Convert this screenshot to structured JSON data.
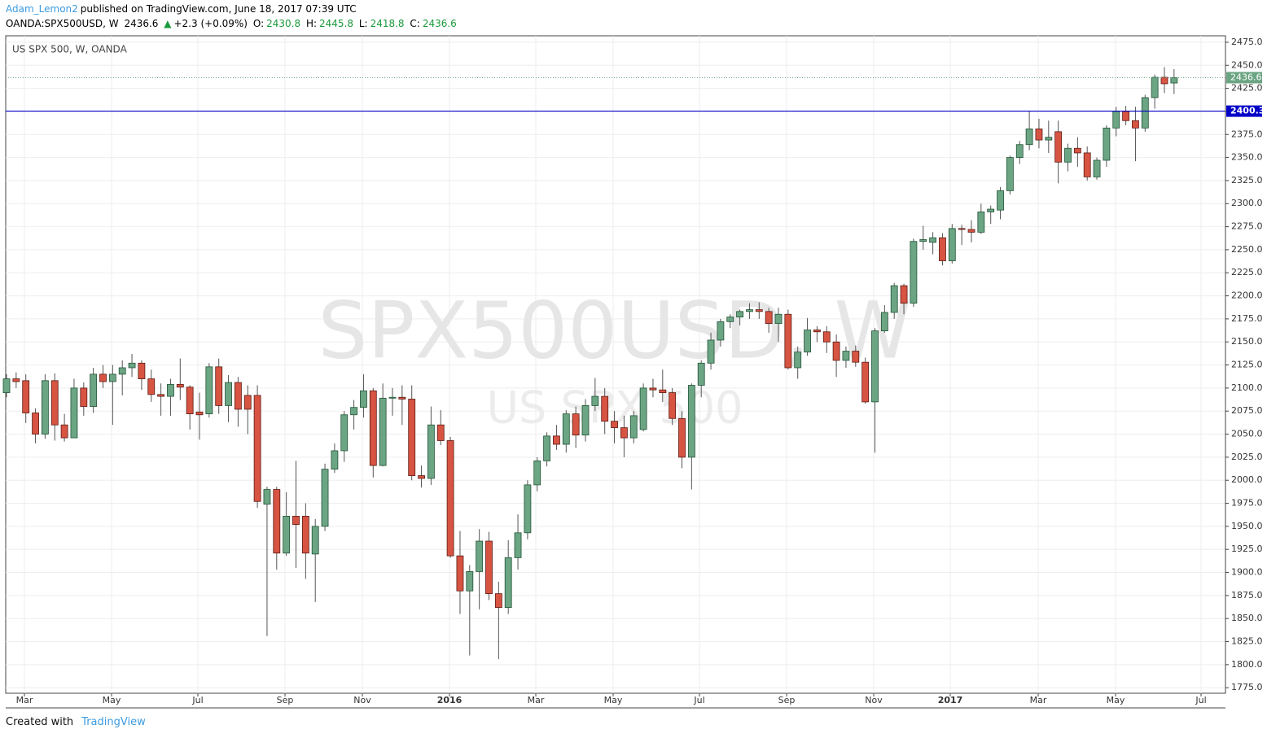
{
  "header": {
    "author": "Adam_Lemon2",
    "published": "published on TradingView.com, June 18, 2017 07:39 UTC",
    "symbol": "OANDA:SPX500USD, W",
    "last": "2436.6",
    "arrow": "▲",
    "change": "+2.3 (+0.09%)",
    "o_label": "O:",
    "o": "2430.8",
    "h_label": "H:",
    "h": "2445.8",
    "l_label": "L:",
    "l": "2418.8",
    "c_label": "C:",
    "c": "2436.6"
  },
  "footer": {
    "created": "Created with",
    "brand": "TradingView"
  },
  "chart_data": {
    "type": "candlestick",
    "title": "US SPX 500, W, OANDA",
    "watermark": "SPX500USD, W",
    "watermark_sub": "US SPX 500",
    "up_color": "#6ba583",
    "down_color": "#d75442",
    "grid": true,
    "last_price": 2436.6,
    "last_price_label": "2436.6",
    "hline": 2400.3,
    "hline_label": "2400.3",
    "hline_color": "#0000c8",
    "x_labels": [
      "Mar",
      "May",
      "Jul",
      "Sep",
      "Nov",
      "2016",
      "Mar",
      "May",
      "Jul",
      "Sep",
      "Nov",
      "2017",
      "Mar",
      "May",
      "Jul"
    ],
    "ylim": [
      1769,
      2482
    ],
    "yticks": [
      {
        "value": 1775,
        "label": "1775.0"
      },
      {
        "value": 1800,
        "label": "1800.0"
      },
      {
        "value": 1825,
        "label": "1825.0"
      },
      {
        "value": 1850,
        "label": "1850.0"
      },
      {
        "value": 1875,
        "label": "1875.0"
      },
      {
        "value": 1900,
        "label": "1900.0"
      },
      {
        "value": 1925,
        "label": "1925.0"
      },
      {
        "value": 1950,
        "label": "1950.0"
      },
      {
        "value": 1975,
        "label": "1975.0"
      },
      {
        "value": 2000,
        "label": "2000.0"
      },
      {
        "value": 2025,
        "label": "2025.0"
      },
      {
        "value": 2050,
        "label": "2050.0"
      },
      {
        "value": 2075,
        "label": "2075.0"
      },
      {
        "value": 2100,
        "label": "2100.0"
      },
      {
        "value": 2125,
        "label": "2125.0"
      },
      {
        "value": 2150,
        "label": "2150.0"
      },
      {
        "value": 2175,
        "label": "2175.0"
      },
      {
        "value": 2200,
        "label": "2200.0"
      },
      {
        "value": 2225,
        "label": "2225.0"
      },
      {
        "value": 2250,
        "label": "2250.0"
      },
      {
        "value": 2275,
        "label": "2275.0"
      },
      {
        "value": 2300,
        "label": "2300.0"
      },
      {
        "value": 2325,
        "label": "2325.0"
      },
      {
        "value": 2350,
        "label": "2350.0"
      },
      {
        "value": 2375,
        "label": "2375.0"
      },
      {
        "value": 2400,
        "label": "2400.0"
      },
      {
        "value": 2425,
        "label": "2425.0"
      },
      {
        "value": 2450,
        "label": "2450.0"
      },
      {
        "value": 2475,
        "label": "2475.0"
      }
    ],
    "open": [
      2095,
      2110,
      2108,
      2073,
      2050,
      2108,
      2060,
      2046,
      2100,
      2080,
      2115,
      2107,
      2115,
      2122,
      2127,
      2110,
      2093,
      2091,
      2104,
      2101,
      2074,
      2072,
      2123,
      2081,
      2106,
      2092,
      2092,
      1974,
      1990,
      1921,
      1961,
      1961,
      1920,
      1950,
      2012,
      2032,
      2071,
      2079,
      2097,
      2016,
      2089,
      2090,
      2088,
      2005,
      2002,
      2060,
      2043,
      1918,
      1880,
      1901,
      1934,
      1877,
      1862,
      1916,
      1943,
      1995,
      2021,
      2048,
      2039,
      2072,
      2049,
      2081,
      2091,
      2064,
      2057,
      2046,
      2055,
      2100,
      2098,
      2095,
      2067,
      2025,
      2103,
      2127,
      2152,
      2172,
      2177,
      2183,
      2185,
      2183,
      2170,
      2180,
      2122,
      2139,
      2163,
      2161,
      2150,
      2130,
      2140,
      2128,
      2085,
      2162,
      2182,
      2211,
      2192,
      2259,
      2258,
      2263,
      2238,
      2273,
      2272,
      2269,
      2291,
      2293,
      2314,
      2350,
      2364,
      2381,
      2369,
      2378,
      2345,
      2360,
      2355,
      2329,
      2347,
      2382,
      2400,
      2390,
      2382,
      2415,
      2437,
      2430.8
    ],
    "high": [
      2115,
      2117,
      2115,
      2078,
      2115,
      2116,
      2072,
      2110,
      2106,
      2122,
      2125,
      2125,
      2130,
      2137,
      2130,
      2120,
      2105,
      2110,
      2132,
      2103,
      2095,
      2127,
      2132,
      2114,
      2112,
      2103,
      2103,
      1993,
      1993,
      1987,
      2021,
      1975,
      1958,
      2018,
      2040,
      2075,
      2087,
      2115,
      2100,
      2105,
      2100,
      2103,
      2103,
      2016,
      2080,
      2076,
      2047,
      1945,
      1908,
      1947,
      1944,
      1890,
      1935,
      1963,
      2000,
      2025,
      2052,
      2060,
      2076,
      2080,
      2088,
      2111,
      2100,
      2075,
      2070,
      2075,
      2105,
      2110,
      2120,
      2100,
      2075,
      2105,
      2130,
      2160,
      2175,
      2180,
      2185,
      2192,
      2193,
      2187,
      2187,
      2185,
      2145,
      2176,
      2167,
      2167,
      2158,
      2145,
      2146,
      2133,
      2165,
      2190,
      2214,
      2213,
      2262,
      2276,
      2269,
      2268,
      2278,
      2277,
      2282,
      2300,
      2298,
      2318,
      2352,
      2368,
      2400,
      2392,
      2390,
      2390,
      2365,
      2372,
      2362,
      2350,
      2385,
      2405,
      2406,
      2405,
      2418,
      2440,
      2448,
      2445.8
    ],
    "low": [
      2090,
      2100,
      2062,
      2040,
      2045,
      2043,
      2042,
      2046,
      2070,
      2073,
      2100,
      2060,
      2092,
      2112,
      2098,
      2085,
      2070,
      2070,
      2087,
      2055,
      2044,
      2068,
      2072,
      2063,
      2058,
      2050,
      1970,
      1831,
      1903,
      1918,
      1905,
      1893,
      1868,
      1945,
      2008,
      2020,
      2055,
      2068,
      2003,
      2015,
      2070,
      2060,
      2000,
      1992,
      1995,
      2038,
      1916,
      1855,
      1810,
      1860,
      1870,
      1806,
      1855,
      1903,
      1936,
      1988,
      2015,
      2033,
      2030,
      2035,
      2042,
      2075,
      2050,
      2040,
      2025,
      2040,
      2053,
      2090,
      2085,
      2060,
      2013,
      1990,
      2090,
      2120,
      2145,
      2165,
      2168,
      2175,
      2175,
      2160,
      2150,
      2120,
      2110,
      2135,
      2150,
      2138,
      2112,
      2122,
      2123,
      2083,
      2030,
      2160,
      2175,
      2180,
      2188,
      2250,
      2245,
      2233,
      2235,
      2255,
      2258,
      2267,
      2278,
      2283,
      2310,
      2343,
      2358,
      2360,
      2355,
      2322,
      2335,
      2340,
      2325,
      2326,
      2340,
      2373,
      2385,
      2346,
      2378,
      2403,
      2420,
      2418.8
    ],
    "close": [
      2110,
      2107,
      2073,
      2050,
      2108,
      2060,
      2046,
      2100,
      2080,
      2115,
      2107,
      2115,
      2122,
      2127,
      2110,
      2093,
      2091,
      2104,
      2101,
      2072,
      2071,
      2123,
      2081,
      2106,
      2077,
      2077,
      1977,
      1990,
      1921,
      1961,
      1952,
      1921,
      1950,
      2012,
      2032,
      2071,
      2079,
      2097,
      2016,
      2089,
      2090,
      2088,
      2005,
      2002,
      2060,
      2043,
      1918,
      1880,
      1901,
      1934,
      1877,
      1862,
      1916,
      1943,
      1995,
      2021,
      2048,
      2039,
      2072,
      2049,
      2081,
      2091,
      2064,
      2057,
      2046,
      2070,
      2100,
      2098,
      2095,
      2067,
      2025,
      2103,
      2127,
      2152,
      2172,
      2177,
      2183,
      2185,
      2183,
      2170,
      2180,
      2122,
      2139,
      2163,
      2161,
      2150,
      2130,
      2140,
      2128,
      2085,
      2162,
      2182,
      2211,
      2192,
      2259,
      2261,
      2263,
      2238,
      2273,
      2272,
      2269,
      2291,
      2294,
      2314,
      2350,
      2364,
      2381,
      2369,
      2372,
      2345,
      2360,
      2355,
      2329,
      2347,
      2382,
      2400,
      2390,
      2382,
      2415,
      2437,
      2430,
      2436.6
    ]
  }
}
